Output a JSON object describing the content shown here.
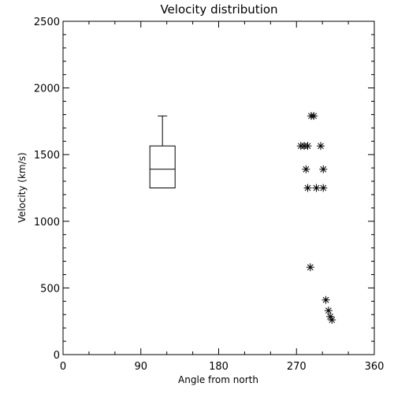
{
  "chart_data": {
    "type": "scatter",
    "title": "Velocity distribution",
    "xlabel": "Angle from north",
    "ylabel": "Velocity (km/s)",
    "xlim": [
      0,
      360
    ],
    "ylim": [
      0,
      2500
    ],
    "xticks": [
      "0",
      "90",
      "180",
      "270",
      "360"
    ],
    "xtick_values": [
      0,
      90,
      180,
      270,
      360
    ],
    "yticks": [
      "0",
      "500",
      "1000",
      "1500",
      "2000",
      "2500"
    ],
    "ytick_values": [
      0,
      500,
      1000,
      1500,
      2000,
      2500
    ],
    "grid": false,
    "boxplot": {
      "x": 115,
      "whisker_low": 1250,
      "q1": 1250,
      "median": 1390,
      "q3": 1565,
      "whisker_high": 1790
    },
    "points": [
      {
        "x": 287,
        "y": 1790
      },
      {
        "x": 290,
        "y": 1790
      },
      {
        "x": 275,
        "y": 1565
      },
      {
        "x": 279,
        "y": 1565
      },
      {
        "x": 283,
        "y": 1565
      },
      {
        "x": 298,
        "y": 1565
      },
      {
        "x": 281,
        "y": 1390
      },
      {
        "x": 301,
        "y": 1390
      },
      {
        "x": 283,
        "y": 1250
      },
      {
        "x": 293,
        "y": 1250
      },
      {
        "x": 301,
        "y": 1250
      },
      {
        "x": 286,
        "y": 655
      },
      {
        "x": 304,
        "y": 410
      },
      {
        "x": 307,
        "y": 330
      },
      {
        "x": 309,
        "y": 285
      },
      {
        "x": 311,
        "y": 260
      }
    ]
  }
}
